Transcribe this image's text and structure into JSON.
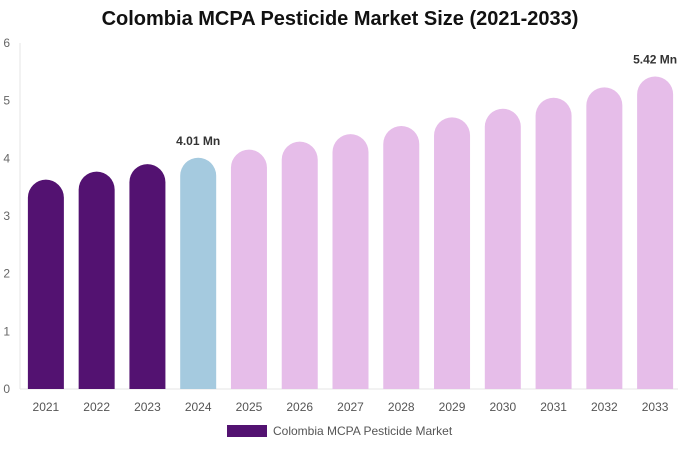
{
  "chart_data": {
    "type": "bar",
    "title": "Colombia MCPA Pesticide Market Size (2021-2033)",
    "categories": [
      "2021",
      "2022",
      "2023",
      "2024",
      "2025",
      "2026",
      "2027",
      "2028",
      "2029",
      "2030",
      "2031",
      "2032",
      "2033"
    ],
    "series": [
      {
        "name": "Colombia MCPA Pesticide Market",
        "values": [
          3.63,
          3.77,
          3.9,
          4.01,
          4.15,
          4.29,
          4.42,
          4.56,
          4.71,
          4.86,
          5.05,
          5.23,
          5.42
        ]
      }
    ],
    "ylim": [
      0,
      6
    ],
    "yticks": [
      "0",
      "1",
      "2",
      "3",
      "4",
      "5",
      "6"
    ],
    "data_labels": [
      {
        "category": "2024",
        "text": "4.01 Mn"
      },
      {
        "category": "2033",
        "text": "5.42 Mn"
      }
    ],
    "legend": "bottom-center",
    "grid": false
  },
  "colors": {
    "historic": "#531271",
    "base_year": "#a5cadf",
    "forecast": "#e6bde9"
  }
}
